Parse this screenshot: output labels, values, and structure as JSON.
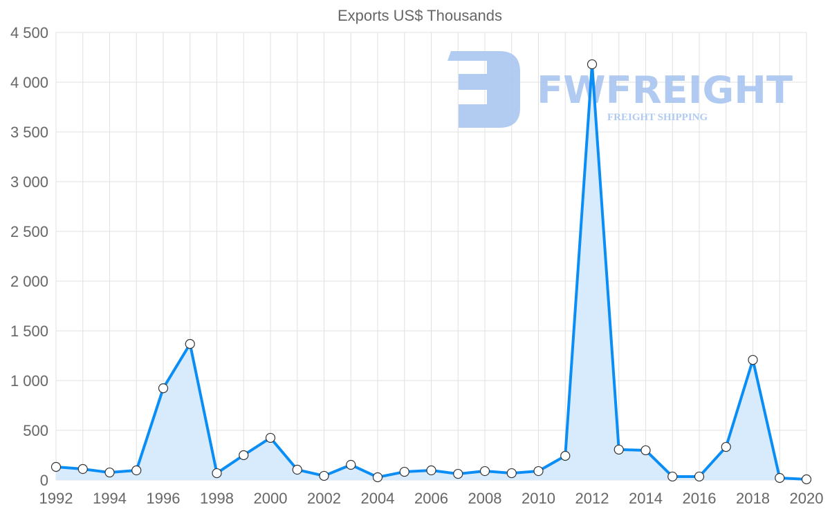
{
  "chart_data": {
    "type": "line",
    "title": "Exports US$ Thousands",
    "xlabel": "",
    "ylabel": "",
    "x": [
      1992,
      1993,
      1994,
      1995,
      1996,
      1997,
      1998,
      1999,
      2000,
      2001,
      2002,
      2003,
      2004,
      2005,
      2006,
      2007,
      2008,
      2009,
      2010,
      2011,
      2012,
      2013,
      2014,
      2015,
      2016,
      2017,
      2018,
      2019,
      2020
    ],
    "series": [
      {
        "name": "Exports US$ Thousands",
        "values": [
          132,
          111,
          76,
          97,
          923,
          1368,
          69,
          250,
          424,
          104,
          42,
          153,
          28,
          83,
          97,
          62,
          90,
          69,
          90,
          243,
          4180,
          306,
          299,
          35,
          35,
          333,
          1208,
          21,
          7
        ]
      }
    ],
    "ylim": [
      0,
      4500
    ],
    "xlim": [
      1992,
      2020
    ],
    "yticks": [
      0,
      500,
      1000,
      1500,
      2000,
      2500,
      3000,
      3500,
      4000,
      4500
    ],
    "ytick_labels": [
      "0",
      "500",
      "1 000",
      "1 500",
      "2 000",
      "2 500",
      "3 000",
      "3 500",
      "4 000",
      "4 500"
    ],
    "xticks": [
      1992,
      1994,
      1996,
      1998,
      2000,
      2002,
      2004,
      2006,
      2008,
      2010,
      2012,
      2014,
      2016,
      2018,
      2020
    ],
    "xtick_labels": [
      "1992",
      "1994",
      "1996",
      "1998",
      "2000",
      "2002",
      "2004",
      "2006",
      "2008",
      "2010",
      "2012",
      "2014",
      "2016",
      "2018",
      "2020"
    ],
    "grid": true,
    "legend": "none",
    "colors": {
      "line": "#0a8ef5",
      "fill": "#d7ebfc",
      "point": "#ffffff"
    }
  },
  "watermark": {
    "brand": "FWFREIGHT",
    "tagline": "FREIGHT SHIPPING"
  }
}
